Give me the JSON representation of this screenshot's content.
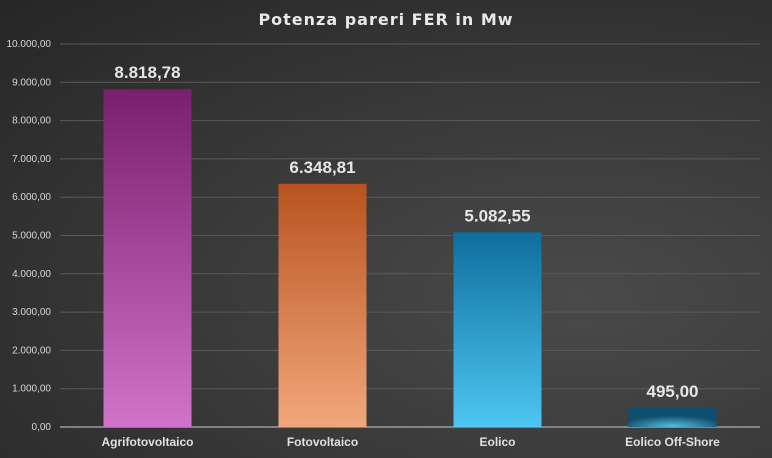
{
  "chart_data": {
    "type": "bar",
    "title": "Potenza pareri FER in Mw",
    "categories": [
      "Agrifotovoltaico",
      "Fotovoltaico",
      "Eolico",
      "Eolico Off-Shore"
    ],
    "values": [
      8818.78,
      6348.81,
      5082.55,
      495.0
    ],
    "data_labels": [
      "8.818,78",
      "6.348,81",
      "5.082,55",
      "495,00"
    ],
    "ylim": [
      0,
      10000
    ],
    "yticks": [
      "0,00",
      "1.000,00",
      "2.000,00",
      "3.000,00",
      "4.000,00",
      "5.000,00",
      "6.000,00",
      "7.000,00",
      "8.000,00",
      "9.000,00",
      "10.000,00"
    ],
    "grid": true,
    "legend": "none",
    "colors": [
      [
        "#7a1e6e",
        "#d173c9"
      ],
      [
        "#b8531f",
        "#f1a77c"
      ],
      [
        "#0f6e9e",
        "#4cc6f0"
      ],
      [
        "#0e4e6e",
        "#5ac0e0"
      ]
    ]
  }
}
